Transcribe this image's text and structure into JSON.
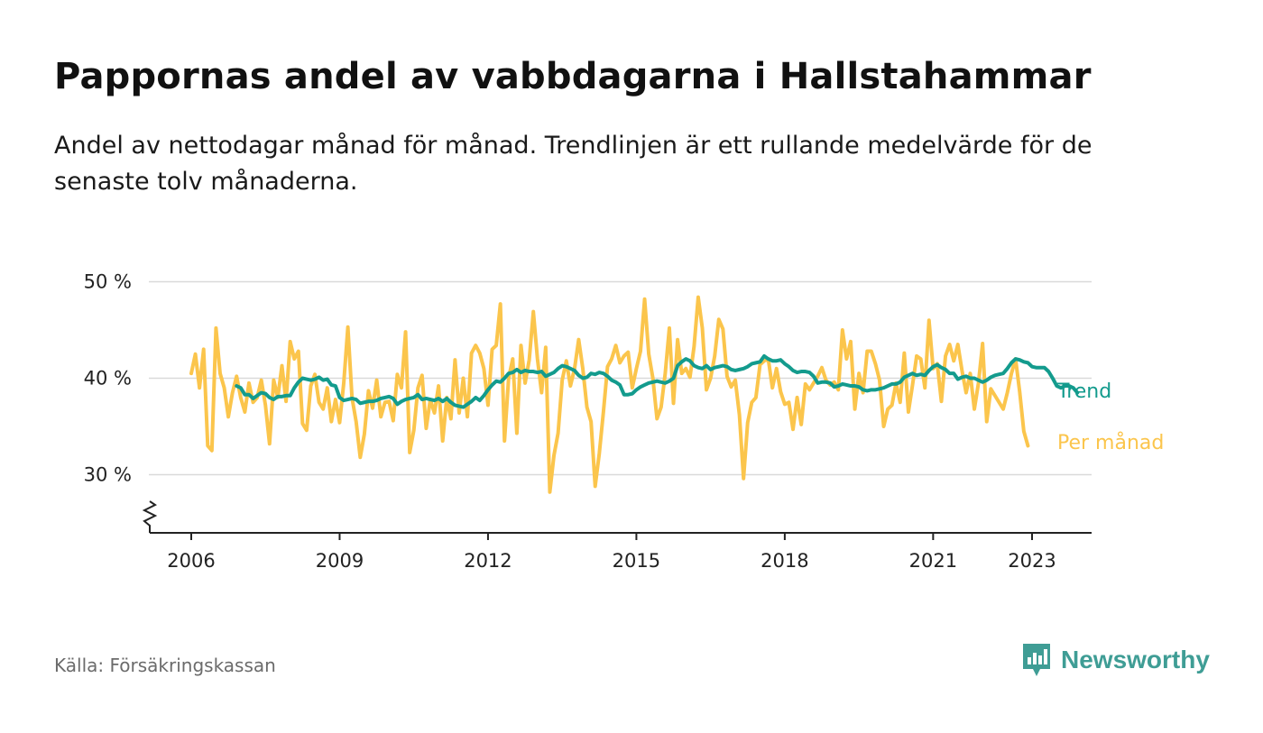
{
  "header": {
    "title": "Pappornas andel av vabbdagarna i Hallstahammar",
    "subtitle": "Andel av nettodagar månad för månad. Trendlinjen är ett rullande medelvärde för de senaste tolv månaderna."
  },
  "footer": {
    "source": "Källa: Försäkringskassan",
    "brand": "Newsworthy",
    "brand_icon": "bar-chart-speech-bubble-icon"
  },
  "colors": {
    "monthly": "#fbc54c",
    "trend": "#139b8d",
    "grid": "#d9d9d9",
    "axis": "#222222"
  },
  "chart_data": {
    "type": "line",
    "title": "Pappornas andel av vabbdagarna i Hallstahammar",
    "unit": "%",
    "x_range": [
      "2006-01",
      "2023-12"
    ],
    "ylim": [
      24,
      50
    ],
    "y_ticks": [
      {
        "value": 30,
        "label": "30 %"
      },
      {
        "value": 40,
        "label": "40 %"
      },
      {
        "value": 50,
        "label": "50 %"
      }
    ],
    "x_ticks": [
      {
        "value": "2006-01",
        "label": "2006"
      },
      {
        "value": "2009-01",
        "label": "2009"
      },
      {
        "value": "2012-01",
        "label": "2012"
      },
      {
        "value": "2015-01",
        "label": "2015"
      },
      {
        "value": "2018-01",
        "label": "2018"
      },
      {
        "value": "2021-01",
        "label": "2021"
      },
      {
        "value": "2023-01",
        "label": "2023"
      }
    ],
    "y_axis_break": true,
    "grid": "horizontal",
    "series": [
      {
        "name": "Per månad",
        "key": "monthly",
        "start": "2006-01",
        "values": [
          40.5,
          42.5,
          39.0,
          43.0,
          33.0,
          32.5,
          45.2,
          40.5,
          39.0,
          36.0,
          38.5,
          40.2,
          38.0,
          36.5,
          39.5,
          37.5,
          38.0,
          39.8,
          37.2,
          33.2,
          39.8,
          38.0,
          41.3,
          37.6,
          43.8,
          42.0,
          42.8,
          35.3,
          34.6,
          39.2,
          40.4,
          37.5,
          36.8,
          39.0,
          35.5,
          37.8,
          35.4,
          39.5,
          45.3,
          38.0,
          35.5,
          31.8,
          34.2,
          38.7,
          36.9,
          39.8,
          36.0,
          37.5,
          37.6,
          35.6,
          40.4,
          39.0,
          44.8,
          32.3,
          34.6,
          39.0,
          40.3,
          34.8,
          37.8,
          36.4,
          39.2,
          33.5,
          38.0,
          35.8,
          41.9,
          36.4,
          40.0,
          36.0,
          42.6,
          43.4,
          42.6,
          41.0,
          37.2,
          43.0,
          43.4,
          47.7,
          33.5,
          40.0,
          42.0,
          34.3,
          43.4,
          39.5,
          41.9,
          46.9,
          42.0,
          38.5,
          43.2,
          28.2,
          32.0,
          34.3,
          39.8,
          41.8,
          39.2,
          41.0,
          44.0,
          41.0,
          37.0,
          35.5,
          28.8,
          32.2,
          36.5,
          41.2,
          42.0,
          43.4,
          41.6,
          42.3,
          42.7,
          39.0,
          41.0,
          42.8,
          48.2,
          42.5,
          40.0,
          35.8,
          37.0,
          40.5,
          45.2,
          37.4,
          44.0,
          40.5,
          41.0,
          40.1,
          43.3,
          48.4,
          45.2,
          38.8,
          40.0,
          42.3,
          46.1,
          45.1,
          40.2,
          39.1,
          39.8,
          36.2,
          29.6,
          35.4,
          37.5,
          38.0,
          41.4,
          41.8,
          42.0,
          39.0,
          41.0,
          38.6,
          37.3,
          37.5,
          34.7,
          38.0,
          35.2,
          39.4,
          38.8,
          39.5,
          40.2,
          41.1,
          39.8,
          39.3,
          39.6,
          38.8,
          45.0,
          42.0,
          43.8,
          36.8,
          40.5,
          38.5,
          42.8,
          42.8,
          41.5,
          39.8,
          35.0,
          36.8,
          37.2,
          39.5,
          37.5,
          42.6,
          36.5,
          39.3,
          42.3,
          42.0,
          39.0,
          46.0,
          41.0,
          41.5,
          37.6,
          42.3,
          43.5,
          41.8,
          43.5,
          40.8,
          38.5,
          40.5,
          36.8,
          39.5,
          43.6,
          35.5,
          38.9,
          38.2,
          37.5,
          36.8,
          38.5,
          40.5,
          42.0,
          38.6,
          34.5,
          33.0
        ]
      },
      {
        "name": "Trend",
        "key": "trend",
        "start": "2006-12",
        "values": [
          39.2,
          39.0,
          38.3,
          38.3,
          37.9,
          38.2,
          38.5,
          38.4,
          38.0,
          37.8,
          38.1,
          38.1,
          38.2,
          38.2,
          39.0,
          39.6,
          40.0,
          39.9,
          39.8,
          39.9,
          40.1,
          39.8,
          39.9,
          39.3,
          39.2,
          38.0,
          37.7,
          37.8,
          37.9,
          37.8,
          37.4,
          37.5,
          37.6,
          37.6,
          37.7,
          37.9,
          38.0,
          38.1,
          37.9,
          37.3,
          37.6,
          37.8,
          37.9,
          38.0,
          38.3,
          37.8,
          37.9,
          37.8,
          37.7,
          37.9,
          37.6,
          37.9,
          37.5,
          37.2,
          37.1,
          37.0,
          37.3,
          37.6,
          38.0,
          37.7,
          38.2,
          38.8,
          39.3,
          39.7,
          39.6,
          40.0,
          40.5,
          40.6,
          40.9,
          40.6,
          40.8,
          40.7,
          40.7,
          40.6,
          40.7,
          40.2,
          40.4,
          40.6,
          41.0,
          41.3,
          41.2,
          41.0,
          40.8,
          40.3,
          40.0,
          40.1,
          40.5,
          40.4,
          40.6,
          40.5,
          40.2,
          39.8,
          39.6,
          39.3,
          38.3,
          38.3,
          38.4,
          38.8,
          39.1,
          39.3,
          39.5,
          39.6,
          39.7,
          39.6,
          39.5,
          39.7,
          40.0,
          41.3,
          41.7,
          42.0,
          41.8,
          41.3,
          41.1,
          41.0,
          41.3,
          40.9,
          41.1,
          41.2,
          41.3,
          41.2,
          40.9,
          40.8,
          40.9,
          41.0,
          41.2,
          41.5,
          41.6,
          41.7,
          42.3,
          42.0,
          41.8,
          41.8,
          41.9,
          41.5,
          41.2,
          40.8,
          40.6,
          40.7,
          40.7,
          40.6,
          40.2,
          39.5,
          39.6,
          39.6,
          39.5,
          39.1,
          39.2,
          39.4,
          39.3,
          39.2,
          39.2,
          39.1,
          38.8,
          38.7,
          38.8,
          38.8,
          38.9,
          39.0,
          39.2,
          39.4,
          39.4,
          39.6,
          40.1,
          40.3,
          40.5,
          40.3,
          40.4,
          40.3,
          40.8,
          41.2,
          41.4,
          41.1,
          40.9,
          40.5,
          40.5,
          39.9,
          40.1,
          40.2,
          40.0,
          40.0,
          39.8,
          39.6,
          39.8,
          40.1,
          40.3,
          40.4,
          40.5,
          41.0,
          41.6,
          42.0,
          41.9,
          41.7,
          41.6,
          41.2,
          41.1,
          41.1,
          41.1,
          40.7,
          40.0,
          39.2,
          39.0,
          39.2,
          39.2,
          39.0,
          38.5
        ]
      }
    ]
  }
}
